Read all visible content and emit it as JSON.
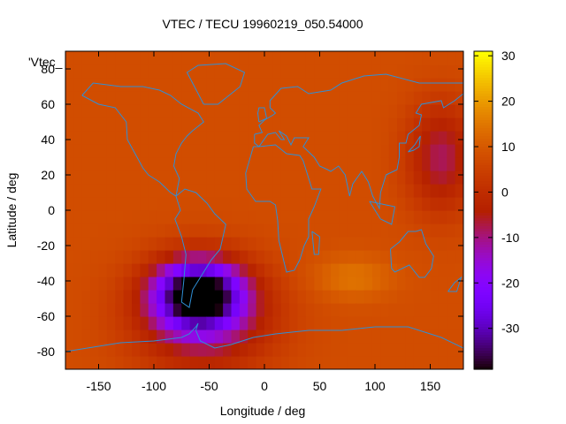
{
  "chart_data": {
    "type": "heatmap",
    "title": "VTEC / TECU 19960219_050.54000",
    "xlabel": "Longitude / deg",
    "ylabel": "Latitude / deg",
    "legend_label": "'Vtec_",
    "xlim": [
      -180,
      180
    ],
    "ylim": [
      -90,
      90
    ],
    "x_ticks": [
      -150,
      -100,
      -50,
      0,
      50,
      100,
      150
    ],
    "y_ticks": [
      -80,
      -60,
      -40,
      -20,
      0,
      20,
      40,
      60,
      80
    ],
    "colorbar": {
      "range": [
        -39,
        31
      ],
      "ticks": [
        30,
        20,
        10,
        0,
        -10,
        -20,
        -30
      ],
      "colormap": "gnuplot-pm3d",
      "position": "right"
    },
    "background_value": 8,
    "features": [
      {
        "lon": -60,
        "lat": -47,
        "value": -38,
        "spread_lon": 38,
        "spread_lat": 18
      },
      {
        "lon": -55,
        "lat": -60,
        "value": -12,
        "spread_lon": 60,
        "spread_lat": 30
      },
      {
        "lon": 80,
        "lat": -38,
        "value": 15,
        "spread_lon": 35,
        "spread_lat": 12
      },
      {
        "lon": -20,
        "lat": 12,
        "value": 8,
        "spread_lon": 60,
        "spread_lat": 14
      },
      {
        "lon": 160,
        "lat": 30,
        "value": -8,
        "spread_lon": 30,
        "spread_lat": 30
      }
    ],
    "coastline_color": "#2f8fd6",
    "grid": false
  }
}
